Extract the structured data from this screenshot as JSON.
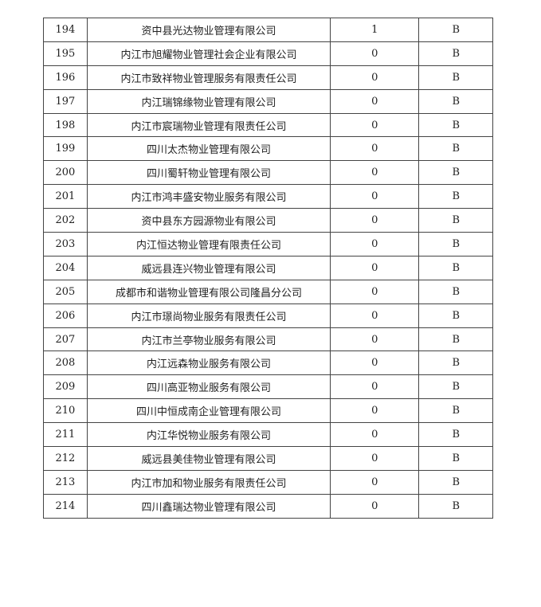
{
  "rows": [
    {
      "no": "194",
      "name": "资中县光达物业管理有限公司",
      "score": "1",
      "grade": "B"
    },
    {
      "no": "195",
      "name": "内江市旭耀物业管理社会企业有限公司",
      "score": "0",
      "grade": "B"
    },
    {
      "no": "196",
      "name": "内江市致祥物业管理服务有限责任公司",
      "score": "0",
      "grade": "B"
    },
    {
      "no": "197",
      "name": "内江瑞锦缘物业管理有限公司",
      "score": "0",
      "grade": "B"
    },
    {
      "no": "198",
      "name": "内江市宸瑞物业管理有限责任公司",
      "score": "0",
      "grade": "B"
    },
    {
      "no": "199",
      "name": "四川太杰物业管理有限公司",
      "score": "0",
      "grade": "B"
    },
    {
      "no": "200",
      "name": "四川蜀轩物业管理有限公司",
      "score": "0",
      "grade": "B"
    },
    {
      "no": "201",
      "name": "内江市鸿丰盛安物业服务有限公司",
      "score": "0",
      "grade": "B"
    },
    {
      "no": "202",
      "name": "资中县东方园源物业有限公司",
      "score": "0",
      "grade": "B"
    },
    {
      "no": "203",
      "name": "内江恒达物业管理有限责任公司",
      "score": "0",
      "grade": "B"
    },
    {
      "no": "204",
      "name": "威远县连兴物业管理有限公司",
      "score": "0",
      "grade": "B"
    },
    {
      "no": "205",
      "name": "成都市和谐物业管理有限公司隆昌分公司",
      "score": "0",
      "grade": "B"
    },
    {
      "no": "206",
      "name": "内江市璟尚物业服务有限责任公司",
      "score": "0",
      "grade": "B"
    },
    {
      "no": "207",
      "name": "内江市兰亭物业服务有限公司",
      "score": "0",
      "grade": "B"
    },
    {
      "no": "208",
      "name": "内江远森物业服务有限公司",
      "score": "0",
      "grade": "B"
    },
    {
      "no": "209",
      "name": "四川高亚物业服务有限公司",
      "score": "0",
      "grade": "B"
    },
    {
      "no": "210",
      "name": "四川中恒成南企业管理有限公司",
      "score": "0",
      "grade": "B"
    },
    {
      "no": "211",
      "name": "内江华悦物业服务有限公司",
      "score": "0",
      "grade": "B"
    },
    {
      "no": "212",
      "name": "威远县美佳物业管理有限公司",
      "score": "0",
      "grade": "B"
    },
    {
      "no": "213",
      "name": "内江市加和物业服务有限责任公司",
      "score": "0",
      "grade": "B"
    },
    {
      "no": "214",
      "name": "四川鑫瑞达物业管理有限公司",
      "score": "0",
      "grade": "B"
    }
  ]
}
